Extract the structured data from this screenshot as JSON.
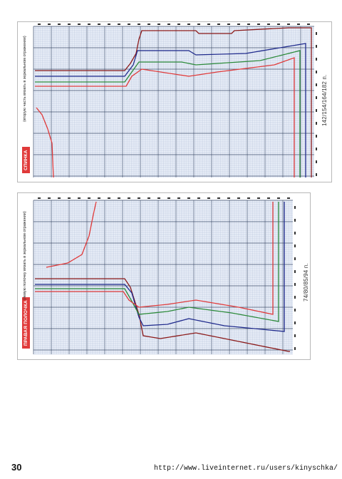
{
  "page": {
    "number": "30",
    "source_url": "http://www.liveinternet.ru/users/kinyschka/"
  },
  "panels": [
    {
      "id": "top",
      "title": "СПИНКА",
      "note": "(вторую часть вязать в зеркальном отражении)",
      "stitch_counts": "142/154/164/182 п.",
      "colors": {
        "accent": "#e03a3a",
        "sizes": [
          "#8b1a1a",
          "#1f2a8c",
          "#2c8a3a",
          "#e03a3a"
        ]
      }
    },
    {
      "id": "bottom",
      "title": "ПРАВАЯ ПОЛОЧКА",
      "note": "(левую полочку вязать в зеркальном отражении)",
      "stitch_counts": "74/80/85/94 п.",
      "colors": {
        "accent": "#e03a3a",
        "sizes": [
          "#8b1a1a",
          "#1f2a8c",
          "#2c8a3a",
          "#e03a3a"
        ]
      }
    }
  ]
}
